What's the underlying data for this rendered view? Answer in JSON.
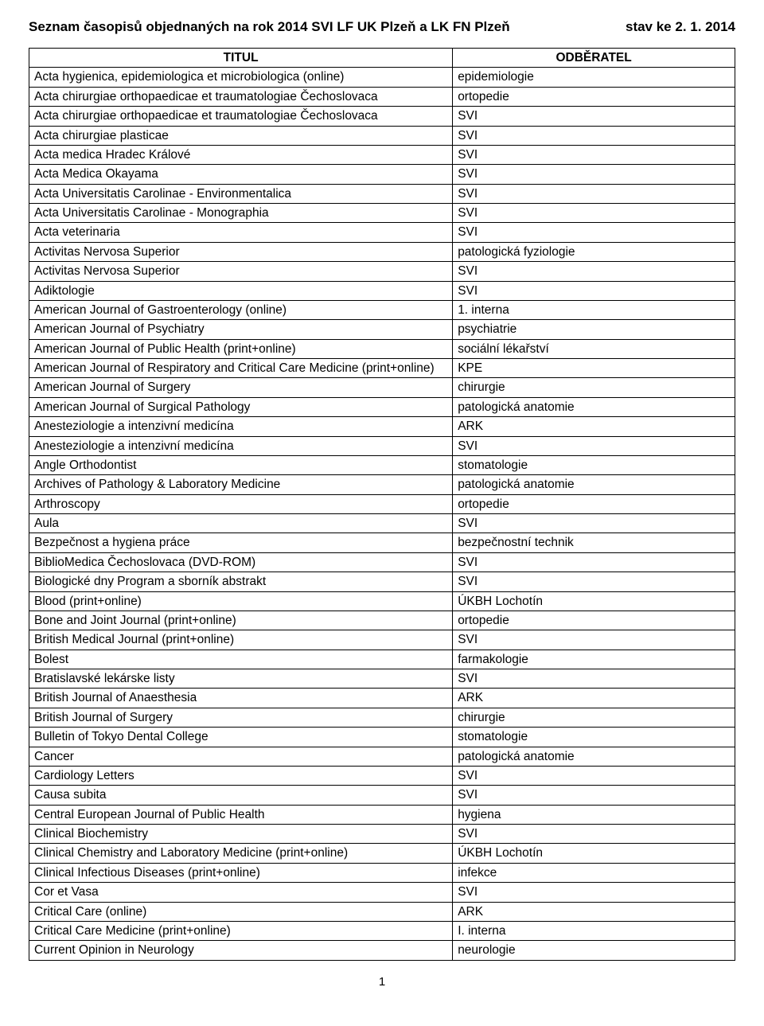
{
  "header": {
    "title": "Seznam časopisů objednaných na rok 2014 SVI LF UK Plzeň a LK FN Plzeň",
    "status": "stav ke 2. 1. 2014"
  },
  "table": {
    "columns": [
      "TITUL",
      "ODBĚRATEL"
    ],
    "rows": [
      [
        "Acta hygienica, epidemiologica et microbiologica (online)",
        "epidemiologie"
      ],
      [
        "Acta chirurgiae orthopaedicae et traumatologiae Čechoslovaca",
        "ortopedie"
      ],
      [
        "Acta chirurgiae orthopaedicae et traumatologiae Čechoslovaca",
        "SVI"
      ],
      [
        "Acta chirurgiae plasticae",
        "SVI"
      ],
      [
        "Acta medica Hradec Králové",
        "SVI"
      ],
      [
        "Acta Medica Okayama",
        "SVI"
      ],
      [
        "Acta Universitatis Carolinae - Environmentalica",
        "SVI"
      ],
      [
        "Acta Universitatis Carolinae - Monographia",
        "SVI"
      ],
      [
        "Acta veterinaria",
        "SVI"
      ],
      [
        "Activitas Nervosa Superior",
        "patologická fyziologie"
      ],
      [
        "Activitas Nervosa Superior",
        "SVI"
      ],
      [
        "Adiktologie",
        "SVI"
      ],
      [
        "American Journal of Gastroenterology (online)",
        "1. interna"
      ],
      [
        "American Journal of Psychiatry",
        "psychiatrie"
      ],
      [
        "American Journal of Public Health (print+online)",
        "sociální lékařství"
      ],
      [
        "American Journal of Respiratory and Critical Care Medicine (print+online)",
        "KPE"
      ],
      [
        "American Journal of Surgery",
        "chirurgie"
      ],
      [
        "American Journal of Surgical Pathology",
        "patologická anatomie"
      ],
      [
        "Anesteziologie a intenzivní medicína",
        "ARK"
      ],
      [
        "Anesteziologie a intenzivní medicína",
        "SVI"
      ],
      [
        "Angle Orthodontist",
        "stomatologie"
      ],
      [
        "Archives of Pathology & Laboratory Medicine",
        "patologická anatomie"
      ],
      [
        "Arthroscopy",
        "ortopedie"
      ],
      [
        "Aula",
        "SVI"
      ],
      [
        "Bezpečnost a hygiena práce",
        "bezpečnostní technik"
      ],
      [
        "BiblioMedica Čechoslovaca (DVD-ROM)",
        "SVI"
      ],
      [
        "Biologické dny Program a sborník abstrakt",
        "SVI"
      ],
      [
        "Blood (print+online)",
        "ÚKBH Lochotín"
      ],
      [
        "Bone and Joint Journal (print+online)",
        "ortopedie"
      ],
      [
        "British Medical Journal (print+online)",
        "SVI"
      ],
      [
        "Bolest",
        "farmakologie"
      ],
      [
        "Bratislavské lekárske listy",
        "SVI"
      ],
      [
        "British Journal of Anaesthesia",
        "ARK"
      ],
      [
        "British Journal of Surgery",
        "chirurgie"
      ],
      [
        "Bulletin of Tokyo Dental College",
        "stomatologie"
      ],
      [
        "Cancer",
        "patologická anatomie"
      ],
      [
        "Cardiology Letters",
        "SVI"
      ],
      [
        "Causa subita",
        "SVI"
      ],
      [
        "Central European Journal of Public Health",
        "hygiena"
      ],
      [
        "Clinical Biochemistry",
        "SVI"
      ],
      [
        "Clinical Chemistry and Laboratory Medicine (print+online)",
        "ÚKBH Lochotín"
      ],
      [
        "Clinical Infectious Diseases (print+online)",
        "infekce"
      ],
      [
        "Cor et Vasa",
        "SVI"
      ],
      [
        "Critical Care (online)",
        "ARK"
      ],
      [
        "Critical Care Medicine (print+online)",
        "I. interna"
      ],
      [
        "Current Opinion in Neurology",
        "neurologie"
      ]
    ]
  },
  "page_number": "1"
}
